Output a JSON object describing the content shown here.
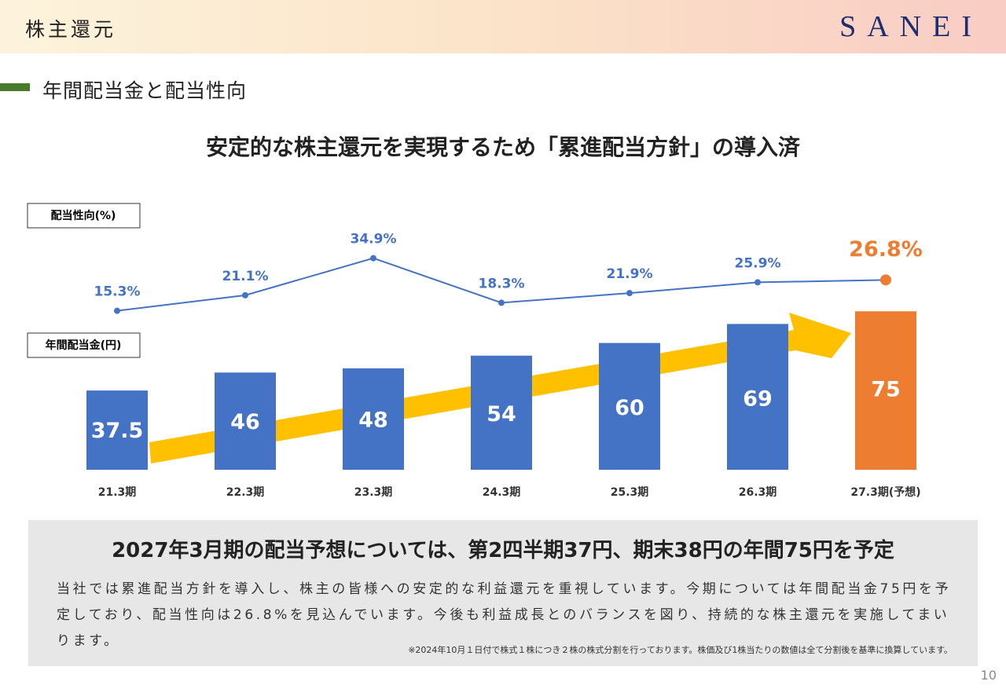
{
  "header": {
    "title": "株主還元",
    "logo": "SANEI"
  },
  "section_title": "年間配当金と配当性向",
  "headline": "安定的な株主還元を実現するため「累進配当方針」の導入済",
  "chart_data": {
    "type": "bar-line",
    "categories": [
      "21.3期",
      "22.3期",
      "23.3期",
      "24.3期",
      "25.3期",
      "26.3期",
      "27.3期(予想)"
    ],
    "series": [
      {
        "name": "年間配当金(円)",
        "type": "bar",
        "color": "#4472c4",
        "values": [
          37.5,
          46,
          48,
          54,
          60,
          69,
          75
        ]
      },
      {
        "name": "配当性向(%)",
        "type": "line",
        "color": "#4472c4",
        "values": [
          15.3,
          21.1,
          34.9,
          18.3,
          21.9,
          25.9,
          26.8
        ],
        "value_labels": [
          "15.3%",
          "21.1%",
          "34.9%",
          "18.3%",
          "21.9%",
          "25.9%",
          "26.8%"
        ]
      }
    ],
    "highlight_color": "#ed7d31"
  },
  "note_box": {
    "heading": "2027年3月期の配当予想については、第2四半期37円、期末38円の年間75円を予定",
    "body": "当社では累進配当方針を導入し、株主の皆様への安定的な利益還元を重視しています。今期については年間配当金75円を予定しており、配当性向は26.8%を見込んでいます。今後も利益成長とのバランスを図り、持続的な株主還元を実施してまいります。",
    "footnote": "※2024年10月１日付で株式１株につき２株の株式分割を行っております。株価及び1株当たりの数値は全て分割後を基準に換算しています。"
  },
  "page_number": "10"
}
